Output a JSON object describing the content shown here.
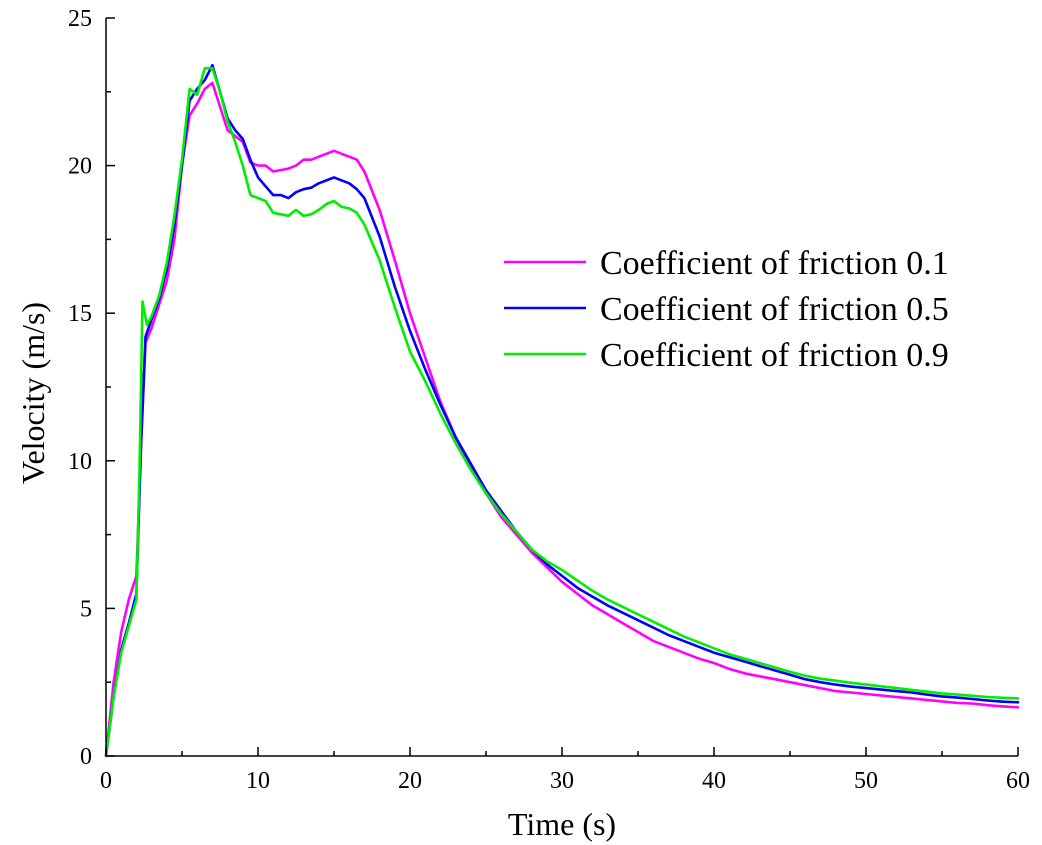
{
  "chart_data": {
    "type": "line",
    "xlabel": "Time (s)",
    "ylabel": "Velocity (m/s)",
    "xlim": [
      0,
      60
    ],
    "ylim": [
      0,
      25
    ],
    "xticks": [
      0,
      10,
      20,
      30,
      40,
      50,
      60
    ],
    "yticks": [
      0,
      5,
      10,
      15,
      20,
      25
    ],
    "grid": false,
    "legend_position": "right",
    "series": [
      {
        "name": "Coefficient of friction 0.1",
        "color": "#ff00ff",
        "x": [
          0,
          0.5,
          1,
          1.5,
          2,
          2.3,
          2.6,
          3,
          3.5,
          4,
          4.5,
          5,
          5.5,
          6,
          6.5,
          7,
          7.5,
          8,
          8.5,
          9,
          9.5,
          10,
          10.5,
          11,
          12,
          12.5,
          13,
          13.5,
          14,
          14.5,
          15,
          15.5,
          16,
          16.5,
          17,
          18,
          19,
          20,
          21,
          22,
          23,
          24,
          25,
          26,
          27,
          28,
          29,
          30,
          31,
          32,
          33,
          34,
          35,
          36,
          37,
          38,
          39,
          40,
          41,
          42,
          43,
          44,
          45,
          46,
          47,
          48,
          49,
          50,
          51,
          52,
          53,
          54,
          55,
          56,
          57,
          58,
          59,
          60
        ],
        "y": [
          0,
          2.5,
          4.2,
          5.3,
          6.1,
          10.5,
          14.0,
          14.5,
          15.3,
          16.1,
          17.5,
          20.0,
          21.7,
          22.1,
          22.6,
          22.8,
          22.0,
          21.2,
          21.0,
          20.8,
          20.1,
          20.0,
          20.0,
          19.8,
          19.9,
          20.0,
          20.2,
          20.2,
          20.3,
          20.4,
          20.5,
          20.4,
          20.3,
          20.2,
          19.8,
          18.5,
          16.8,
          15.0,
          13.5,
          12.0,
          10.8,
          9.8,
          8.9,
          8.1,
          7.5,
          6.9,
          6.4,
          5.9,
          5.5,
          5.1,
          4.8,
          4.5,
          4.2,
          3.9,
          3.7,
          3.5,
          3.3,
          3.15,
          2.95,
          2.8,
          2.7,
          2.6,
          2.5,
          2.4,
          2.3,
          2.2,
          2.15,
          2.1,
          2.05,
          2.0,
          1.95,
          1.9,
          1.85,
          1.8,
          1.78,
          1.72,
          1.68,
          1.65
        ]
      },
      {
        "name": "Coefficient of friction 0.5",
        "color": "#0000ff",
        "x": [
          0,
          0.5,
          1,
          1.5,
          2,
          2.3,
          2.6,
          3,
          3.5,
          4,
          4.5,
          5,
          5.5,
          6,
          6.5,
          7,
          7.5,
          8,
          8.5,
          9,
          9.5,
          10,
          10.5,
          11,
          11.5,
          12,
          12.5,
          13,
          13.5,
          14,
          14.5,
          15,
          15.5,
          16,
          16.5,
          17,
          18,
          19,
          20,
          21,
          22,
          23,
          24,
          25,
          26,
          27,
          28,
          29,
          30,
          31,
          32,
          33,
          34,
          35,
          36,
          37,
          38,
          39,
          40,
          41,
          42,
          43,
          44,
          45,
          46,
          47,
          48,
          49,
          50,
          51,
          52,
          53,
          54,
          55,
          56,
          57,
          58,
          59,
          60
        ],
        "y": [
          0,
          2.0,
          3.6,
          4.5,
          5.5,
          10.5,
          14.2,
          14.8,
          15.5,
          16.5,
          18.0,
          20.0,
          22.2,
          22.6,
          22.9,
          23.4,
          22.5,
          21.6,
          21.2,
          20.9,
          20.2,
          19.6,
          19.3,
          19.0,
          19.0,
          18.9,
          19.1,
          19.2,
          19.25,
          19.4,
          19.5,
          19.6,
          19.5,
          19.4,
          19.2,
          18.9,
          17.6,
          15.9,
          14.4,
          13.1,
          11.9,
          10.8,
          9.9,
          9.0,
          8.3,
          7.6,
          7.0,
          6.5,
          6.1,
          5.7,
          5.4,
          5.1,
          4.85,
          4.6,
          4.35,
          4.1,
          3.9,
          3.7,
          3.5,
          3.35,
          3.2,
          3.05,
          2.9,
          2.75,
          2.6,
          2.5,
          2.42,
          2.35,
          2.3,
          2.25,
          2.2,
          2.15,
          2.08,
          2.02,
          1.98,
          1.93,
          1.88,
          1.84,
          1.82
        ]
      },
      {
        "name": "Coefficient of friction 0.9",
        "color": "#00ee00",
        "x": [
          0,
          0.5,
          1,
          1.5,
          2,
          2.2,
          2.4,
          2.7,
          3,
          3.5,
          4,
          4.5,
          5,
          5.5,
          6,
          6.5,
          7,
          7.5,
          8,
          8.5,
          9,
          9.5,
          10,
          10.5,
          11,
          11.5,
          12,
          12.5,
          13,
          13.5,
          14,
          14.5,
          15,
          15.5,
          16,
          16.5,
          17,
          18,
          19,
          20,
          21,
          22,
          23,
          24,
          25,
          26,
          27,
          28,
          29,
          30,
          31,
          32,
          33,
          34,
          35,
          36,
          37,
          38,
          39,
          40,
          41,
          42,
          43,
          44,
          45,
          46,
          47,
          48,
          49,
          50,
          51,
          52,
          53,
          54,
          55,
          56,
          57,
          58,
          59,
          60
        ],
        "y": [
          0,
          2.0,
          3.5,
          4.4,
          5.3,
          9.5,
          15.4,
          14.6,
          14.9,
          15.6,
          16.7,
          18.3,
          20.2,
          22.6,
          22.4,
          23.3,
          23.3,
          22.5,
          21.5,
          20.8,
          20.0,
          19.0,
          18.9,
          18.8,
          18.4,
          18.35,
          18.3,
          18.5,
          18.3,
          18.35,
          18.5,
          18.7,
          18.8,
          18.6,
          18.55,
          18.4,
          18.0,
          16.8,
          15.2,
          13.7,
          12.7,
          11.6,
          10.6,
          9.7,
          8.9,
          8.2,
          7.6,
          7.0,
          6.6,
          6.3,
          5.95,
          5.6,
          5.3,
          5.05,
          4.8,
          4.55,
          4.3,
          4.05,
          3.85,
          3.65,
          3.45,
          3.3,
          3.15,
          3.0,
          2.85,
          2.72,
          2.62,
          2.55,
          2.48,
          2.42,
          2.36,
          2.3,
          2.24,
          2.18,
          2.12,
          2.08,
          2.04,
          2.0,
          1.97,
          1.95
        ]
      }
    ]
  }
}
